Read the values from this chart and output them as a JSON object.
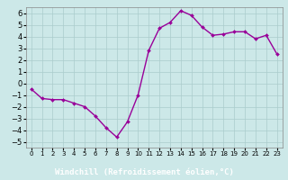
{
  "x": [
    0,
    1,
    2,
    3,
    4,
    5,
    6,
    7,
    8,
    9,
    10,
    11,
    12,
    13,
    14,
    15,
    16,
    17,
    18,
    19,
    20,
    21,
    22,
    23
  ],
  "y": [
    -0.5,
    -1.3,
    -1.4,
    -1.4,
    -1.7,
    -2.0,
    -2.8,
    -3.8,
    -4.6,
    -3.3,
    -1.0,
    2.8,
    4.7,
    5.2,
    6.2,
    5.8,
    4.8,
    4.1,
    4.2,
    4.4,
    4.4,
    3.8,
    4.1,
    2.5
  ],
  "line_color": "#990099",
  "marker": "D",
  "marker_size": 2,
  "line_width": 1.0,
  "bg_color": "#cce8e8",
  "grid_color": "#aacccc",
  "xlabel": "Windchill (Refroidissement éolien,°C)",
  "xlabel_bar_color": "#800080",
  "xlabel_text_color": "#ffffff",
  "ylim": [
    -5.5,
    6.5
  ],
  "xlim": [
    -0.5,
    23.5
  ],
  "yticks": [
    -5,
    -4,
    -3,
    -2,
    -1,
    0,
    1,
    2,
    3,
    4,
    5,
    6
  ],
  "xticks": [
    0,
    1,
    2,
    3,
    4,
    5,
    6,
    7,
    8,
    9,
    10,
    11,
    12,
    13,
    14,
    15,
    16,
    17,
    18,
    19,
    20,
    21,
    22,
    23
  ],
  "ytick_fontsize": 6,
  "xtick_fontsize": 5,
  "xlabel_fontsize": 6.5,
  "spine_color": "#888888"
}
